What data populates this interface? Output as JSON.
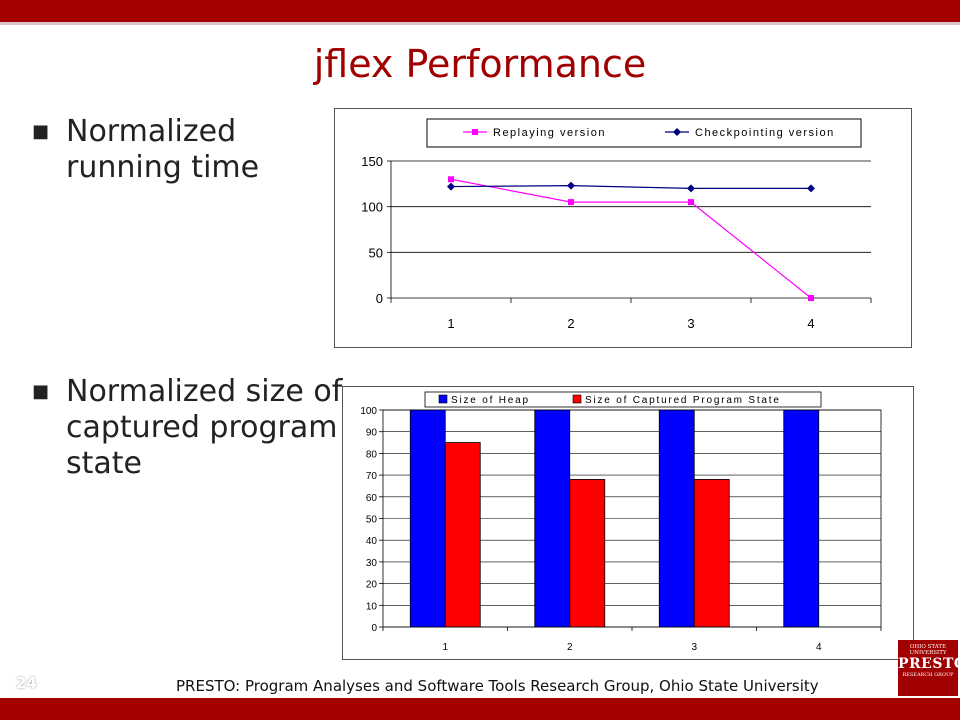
{
  "slide": {
    "title": "jflex Performance",
    "bullets": [
      "Normalized running time",
      "Normalized size of captured program state"
    ],
    "footer": "PRESTO: Program Analyses and Software Tools Research Group, Ohio State University",
    "page_number": "24",
    "bullet_symbol": "■",
    "logo": {
      "line1": "OHIO STATE UNIVERSITY",
      "line2": "PRESTO",
      "line3": "RESEARCH GROUP"
    },
    "colors": {
      "accent": "#a50000",
      "title": "#a00000"
    }
  },
  "chart_data": [
    {
      "type": "line",
      "categories": [
        "1",
        "2",
        "3",
        "4"
      ],
      "series": [
        {
          "name": "Replaying version",
          "values": [
            130,
            105,
            105,
            0
          ],
          "color": "#ff00ff"
        },
        {
          "name": "Checkpointing version",
          "values": [
            122,
            123,
            120,
            120
          ],
          "color": "#000080"
        }
      ],
      "ylim": [
        0,
        150
      ],
      "yticks": [
        0,
        50,
        100,
        150
      ],
      "grid": true,
      "legend": "top"
    },
    {
      "type": "bar",
      "categories": [
        "1",
        "2",
        "3",
        "4"
      ],
      "series": [
        {
          "name": "Size of Heap",
          "values": [
            100,
            100,
            100,
            100
          ],
          "color": "#0000ff"
        },
        {
          "name": "Size of Captured Program State",
          "values": [
            85,
            68,
            68,
            0
          ],
          "color": "#ff0000"
        }
      ],
      "ylim": [
        0,
        100
      ],
      "yticks": [
        0,
        10,
        20,
        30,
        40,
        50,
        60,
        70,
        80,
        90,
        100
      ],
      "grid": true,
      "legend": "top"
    }
  ]
}
